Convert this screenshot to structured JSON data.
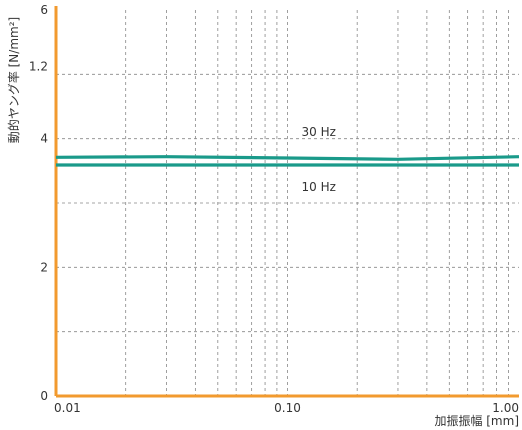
{
  "chart_data": {
    "type": "line",
    "xlabel": "加振振幅 [mm]",
    "ylabel": "動的ヤング率 [N/mm²]",
    "x_scale": "log",
    "xlim": [
      0.01,
      1.0
    ],
    "x_ticks": [
      {
        "value": 0.01,
        "label": "0.01"
      },
      {
        "value": 0.1,
        "label": "0.10"
      },
      {
        "value": 1.0,
        "label": "1.00"
      }
    ],
    "ylim": [
      0,
      6
    ],
    "y_ticks": [
      {
        "value": 0,
        "label": "0"
      },
      {
        "value": 2,
        "label": "2"
      },
      {
        "value": 4,
        "label": "4"
      },
      {
        "value": 6,
        "label": "6"
      }
    ],
    "y_extra_labels": [
      {
        "value": 5,
        "label": "1.2"
      }
    ],
    "grid": true,
    "series": [
      {
        "name": "30 Hz",
        "color": "#1a9a8a",
        "x": [
          0.01,
          0.03,
          0.1,
          0.3,
          1.0
        ],
        "y": [
          3.71,
          3.72,
          3.7,
          3.68,
          3.72
        ]
      },
      {
        "name": "10 Hz",
        "color": "#1a9a8a",
        "x": [
          0.01,
          0.03,
          0.1,
          0.3,
          1.0
        ],
        "y": [
          3.59,
          3.59,
          3.59,
          3.59,
          3.59
        ]
      }
    ],
    "axis_color": "#f29a2e",
    "grid_color": "#888888"
  }
}
